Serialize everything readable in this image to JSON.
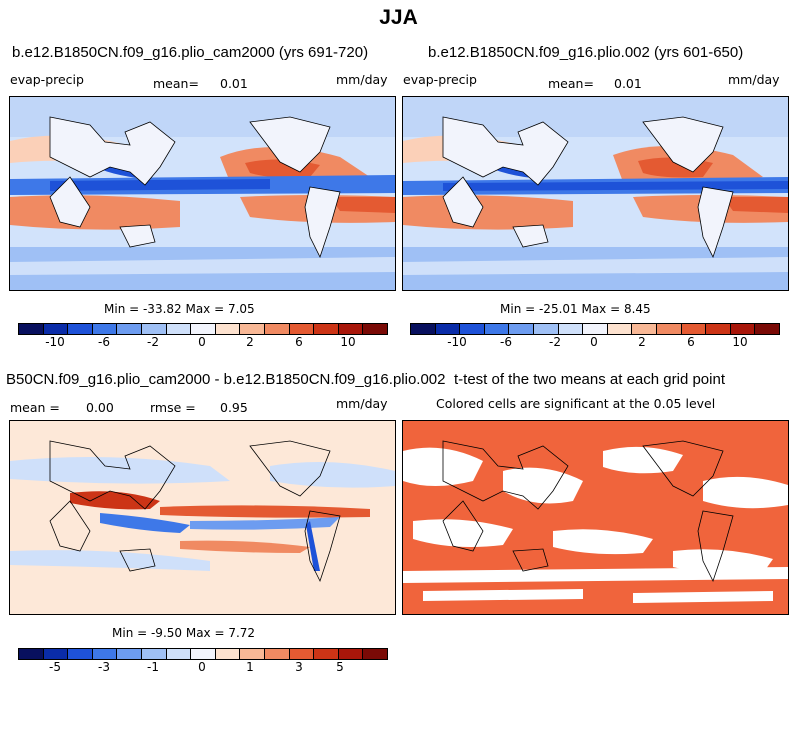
{
  "title": "JJA",
  "panels": [
    {
      "title": "b.e12.B1850CN.f09_g16.plio_cam2000 (yrs 691-720)",
      "variable": "evap-precip",
      "mean_label": "mean=",
      "mean_value": "0.01",
      "units": "mm/day",
      "minmax": "Min = -33.82  Max =    7.05",
      "colorbar_ticks": [
        "-10",
        "-6",
        "-2",
        "0",
        "2",
        "6",
        "10"
      ]
    },
    {
      "title": "b.e12.B1850CN.f09_g16.plio.002 (yrs 601-650)",
      "variable": "evap-precip",
      "mean_label": "mean=",
      "mean_value": "0.01",
      "units": "mm/day",
      "minmax": "Min = -25.01  Max =    8.45",
      "colorbar_ticks": [
        "-10",
        "-6",
        "-2",
        "0",
        "2",
        "6",
        "10"
      ]
    },
    {
      "title": "B50CN.f09_g16.plio_cam2000 - b.e12.B1850CN.f09_g16.plio.002",
      "mean_label": "mean =",
      "mean_value": "0.00",
      "rmse_label": "rmse =",
      "rmse_value": "0.95",
      "units": "mm/day",
      "minmax": "Min =  -9.50  Max =    7.72",
      "colorbar_ticks": [
        "-5",
        "-3",
        "-1",
        "0",
        "1",
        "3",
        "5"
      ]
    },
    {
      "title": "t-test of the two means at each grid point",
      "subtitle": "Colored cells are significant at the 0.05 level"
    }
  ],
  "colors": {
    "colorbar": [
      "#08105e",
      "#0a2ca8",
      "#1e52d8",
      "#3e78e8",
      "#6d9cf0",
      "#9fc0f5",
      "#cfe0fa",
      "#f2f4fc",
      "#fde2cf",
      "#f8b896",
      "#f08a62",
      "#e45a32",
      "#cc3416",
      "#a8160a",
      "#7a0a06"
    ],
    "sig": "#f0643c"
  }
}
